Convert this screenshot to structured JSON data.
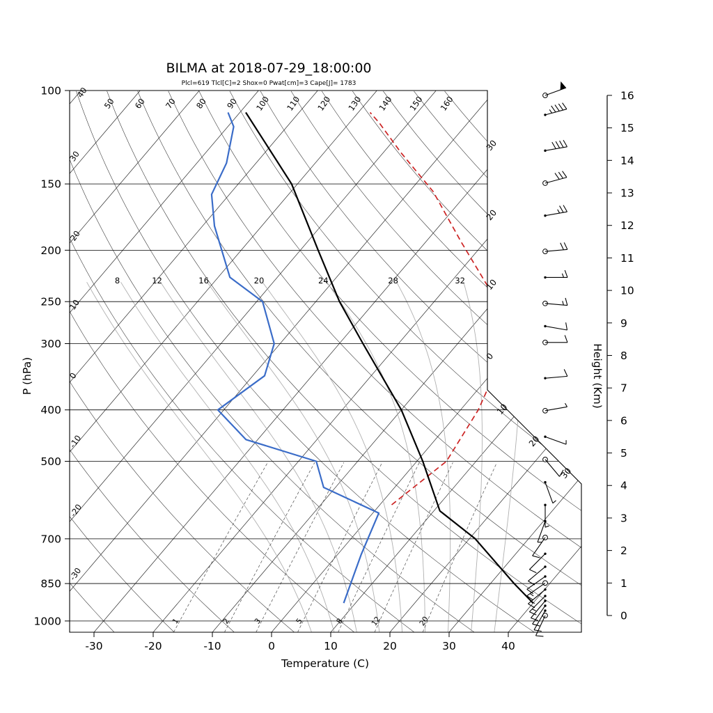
{
  "title": "BILMA at 2018-07-29_18:00:00",
  "stats_line": "Plcl=619 Tlcl[C]=2 Shox=0 Pwat[cm]=3 Cape[J]= 1783",
  "axes": {
    "pressure_label": "P (hPa)",
    "temperature_label": "Temperature (C)",
    "height_label": "Height (Km)",
    "pressure_ticks": [
      100,
      150,
      200,
      250,
      300,
      400,
      500,
      700,
      850,
      1000
    ],
    "temperature_ticks": [
      -30,
      -20,
      -10,
      0,
      10,
      20,
      30,
      40
    ],
    "height_ticks": [
      0,
      1,
      2,
      3,
      4,
      5,
      6,
      7,
      8,
      9,
      10,
      11,
      12,
      13,
      14,
      15,
      16
    ]
  },
  "chart_data": {
    "type": "line",
    "diagram": "skew-t log-p sounding",
    "station": "BILMA",
    "time": "2018-07-29_18:00:00",
    "indices": {
      "Plcl": 619,
      "Tlcl_C": 2,
      "Shox": 0,
      "Pwat_cm": 3,
      "Cape_J": 1783
    },
    "isotherms": {
      "values": [
        -110,
        -100,
        -90,
        -80,
        -70,
        -60,
        -50,
        -40,
        -30,
        -20,
        -10,
        0,
        10,
        20,
        30,
        40
      ],
      "right_edge_values": [
        -30,
        -20,
        -10,
        0
      ],
      "right_edge_labels": [
        "30",
        "20",
        "10",
        "0"
      ],
      "diagonal_values": [
        10,
        20,
        30
      ],
      "diagonal_labels": [
        "10",
        "20",
        "30"
      ]
    },
    "dry_adiabats": {
      "values": [
        -30,
        -20,
        -10,
        0,
        10,
        20,
        30,
        40,
        50,
        60,
        70,
        80,
        90,
        100,
        110,
        120,
        130,
        140,
        150,
        160
      ],
      "top_values": [
        50,
        60,
        70,
        80,
        90,
        100,
        110,
        120,
        130,
        140,
        150,
        160
      ],
      "top_labels": [
        "50",
        "60",
        "70",
        "80",
        "90",
        "100",
        "110",
        "120",
        "130",
        "140",
        "150",
        "160"
      ],
      "left_values": [
        40,
        30,
        20,
        10,
        0,
        -10,
        -20,
        -30
      ],
      "left_labels": [
        "40",
        "30",
        "20",
        "10",
        "0",
        "-10",
        "-20",
        "-30"
      ]
    },
    "moist_adiabats": {
      "values": [
        4,
        8,
        12,
        16,
        20,
        24,
        28,
        32,
        36
      ],
      "label_values": [
        8,
        12,
        16,
        20,
        24,
        28,
        32
      ],
      "labels": [
        "8",
        "12",
        "16",
        "20",
        "24",
        "28",
        "32"
      ]
    },
    "mixing_ratio_lines": {
      "values": [
        1,
        2,
        3,
        5,
        8,
        12,
        20
      ],
      "labels": [
        "1",
        "2",
        "3",
        "5",
        "8",
        "12",
        "20"
      ]
    },
    "temperature_profile": [
      [
        925,
        40
      ],
      [
        850,
        34
      ],
      [
        700,
        21
      ],
      [
        620,
        11
      ],
      [
        500,
        1
      ],
      [
        400,
        -10
      ],
      [
        300,
        -26
      ],
      [
        250,
        -36
      ],
      [
        200,
        -47
      ],
      [
        150,
        -61
      ],
      [
        110,
        -79
      ]
    ],
    "dewpoint_profile": [
      [
        925,
        8
      ],
      [
        750,
        4
      ],
      [
        626,
        1
      ],
      [
        560,
        -12
      ],
      [
        500,
        -17
      ],
      [
        455,
        -32
      ],
      [
        400,
        -41
      ],
      [
        345,
        -38
      ],
      [
        300,
        -41
      ],
      [
        250,
        -49
      ],
      [
        225,
        -58
      ],
      [
        180,
        -68
      ],
      [
        157,
        -73
      ],
      [
        137,
        -75
      ],
      [
        117,
        -79
      ],
      [
        110,
        -82
      ]
    ],
    "parcel_profile": [
      [
        604,
        2
      ],
      [
        500,
        5
      ],
      [
        400,
        3
      ],
      [
        310,
        -1
      ],
      [
        243,
        -11
      ],
      [
        193,
        -24
      ],
      [
        155,
        -36
      ],
      [
        131,
        -47
      ],
      [
        115,
        -55
      ],
      [
        110,
        -58
      ]
    ],
    "wind_barbs": [
      {
        "z": 16.0,
        "spd": 50,
        "dir": 70,
        "open": true
      },
      {
        "z": 15.4,
        "spd": 45,
        "dir": 75,
        "open": false
      },
      {
        "z": 14.3,
        "spd": 40,
        "dir": 80,
        "open": false
      },
      {
        "z": 13.3,
        "spd": 30,
        "dir": 75,
        "open": true
      },
      {
        "z": 12.3,
        "spd": 25,
        "dir": 80,
        "open": false
      },
      {
        "z": 11.2,
        "spd": 20,
        "dir": 85,
        "open": true
      },
      {
        "z": 10.4,
        "spd": 15,
        "dir": 90,
        "open": false
      },
      {
        "z": 9.6,
        "spd": 15,
        "dir": 95,
        "open": true
      },
      {
        "z": 8.9,
        "spd": 10,
        "dir": 100,
        "open": false
      },
      {
        "z": 8.4,
        "spd": 10,
        "dir": 90,
        "open": true
      },
      {
        "z": 7.3,
        "spd": 10,
        "dir": 85,
        "open": false
      },
      {
        "z": 6.3,
        "spd": 5,
        "dir": 80,
        "open": true
      },
      {
        "z": 5.5,
        "spd": 5,
        "dir": 110,
        "open": false
      },
      {
        "z": 4.8,
        "spd": 10,
        "dir": 140,
        "open": true
      },
      {
        "z": 4.1,
        "spd": 5,
        "dir": 160,
        "open": false
      },
      {
        "z": 3.4,
        "spd": 5,
        "dir": 180,
        "open": false
      },
      {
        "z": 2.9,
        "spd": 5,
        "dir": 200,
        "open": false
      },
      {
        "z": 2.4,
        "spd": 10,
        "dir": 215,
        "open": true
      },
      {
        "z": 1.9,
        "spd": 10,
        "dir": 225,
        "open": false
      },
      {
        "z": 1.5,
        "spd": 10,
        "dir": 230,
        "open": false
      },
      {
        "z": 1.2,
        "spd": 12,
        "dir": 235,
        "open": false
      },
      {
        "z": 1.0,
        "spd": 15,
        "dir": 235,
        "open": true
      },
      {
        "z": 0.8,
        "spd": 15,
        "dir": 230,
        "open": false
      },
      {
        "z": 0.6,
        "spd": 15,
        "dir": 225,
        "open": false
      },
      {
        "z": 0.45,
        "spd": 12,
        "dir": 220,
        "open": false
      },
      {
        "z": 0.3,
        "spd": 10,
        "dir": 215,
        "open": false
      },
      {
        "z": 0.15,
        "spd": 10,
        "dir": 210,
        "open": false
      },
      {
        "z": 0.0,
        "spd": 8,
        "dir": 205,
        "open": true
      }
    ]
  },
  "colors": {
    "temperature_line": "#000000",
    "dewpoint_line": "#3a6cc8",
    "parcel_line": "#cc2222",
    "stats_text": "#a5502d",
    "grid": "#2a2a2a",
    "moist_adiabat": "#b0b0b0",
    "mixing_ratio": "#555555"
  }
}
